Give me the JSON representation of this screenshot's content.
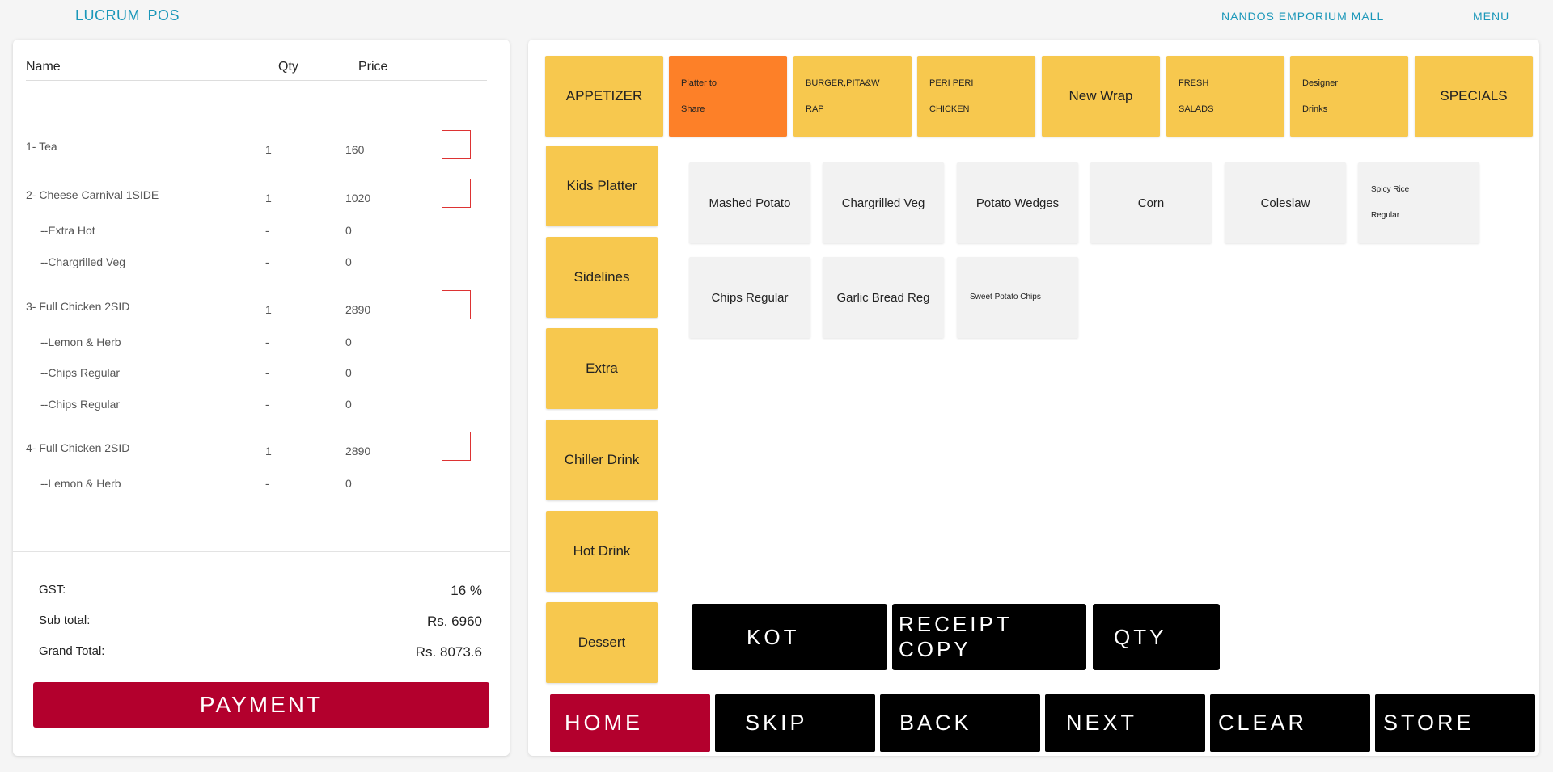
{
  "topbar": {
    "brand": "LUCRUM  POS",
    "store_name": "NANDOS EMPORIUM MALL",
    "menu_label": "MENU"
  },
  "order": {
    "headers": {
      "name": "Name",
      "qty": "Qty",
      "price": "Price"
    },
    "rows": [
      {
        "name": "1- Tea",
        "qty": "1",
        "price": "160",
        "sub": false,
        "checkbox": true
      },
      {
        "name": "2- Cheese Carnival 1SIDE",
        "qty": "1",
        "price": "1020",
        "sub": false,
        "checkbox": true
      },
      {
        "name": "--Extra Hot",
        "qty": "-",
        "price": "0",
        "sub": true,
        "checkbox": false
      },
      {
        "name": "--Chargrilled Veg",
        "qty": "-",
        "price": "0",
        "sub": true,
        "checkbox": false
      },
      {
        "name": "3- Full Chicken 2SID",
        "qty": "1",
        "price": "2890",
        "sub": false,
        "checkbox": true
      },
      {
        "name": "--Lemon & Herb",
        "qty": "-",
        "price": "0",
        "sub": true,
        "checkbox": false
      },
      {
        "name": "--Chips Regular",
        "qty": "-",
        "price": "0",
        "sub": true,
        "checkbox": false
      },
      {
        "name": "--Chips Regular",
        "qty": "-",
        "price": "0",
        "sub": true,
        "checkbox": false
      },
      {
        "name": "4- Full Chicken 2SID",
        "qty": "1",
        "price": "2890",
        "sub": false,
        "checkbox": true
      },
      {
        "name": "--Lemon & Herb",
        "qty": "-",
        "price": "0",
        "sub": true,
        "checkbox": false
      }
    ],
    "totals": {
      "gst_label": "GST:",
      "gst_value": "16 %",
      "subtotal_label": "Sub total:",
      "subtotal_value": "Rs. 6960",
      "grand_label": "Grand Total:",
      "grand_value": "Rs. 8073.6"
    },
    "payment_label": "PAYMENT"
  },
  "categories": [
    {
      "label": "APPETIZER",
      "style": "big",
      "active": false
    },
    {
      "label": "Platter to\nShare",
      "style": "small",
      "active": true
    },
    {
      "label": "BURGER,PITA&W\nRAP",
      "style": "small",
      "active": false
    },
    {
      "label": "PERI PERI\nCHICKEN",
      "style": "small",
      "active": false
    },
    {
      "label": "New Wrap",
      "style": "big",
      "active": false
    },
    {
      "label": "FRESH\nSALADS",
      "style": "small",
      "active": false
    },
    {
      "label": "Designer\nDrinks",
      "style": "small",
      "active": false
    },
    {
      "label": "SPECIALS",
      "style": "big",
      "active": false
    }
  ],
  "side_categories": [
    {
      "label": "Kids Platter"
    },
    {
      "label": "Sidelines"
    },
    {
      "label": "Extra"
    },
    {
      "label": "Chiller Drink"
    },
    {
      "label": "Hot Drink"
    },
    {
      "label": "Dessert"
    }
  ],
  "items": [
    {
      "label": "Mashed Potato",
      "style": "big"
    },
    {
      "label": "Chargrilled Veg",
      "style": "big"
    },
    {
      "label": "Potato Wedges",
      "style": "big"
    },
    {
      "label": "Corn",
      "style": "big"
    },
    {
      "label": "Coleslaw",
      "style": "big"
    },
    {
      "label": "Spicy Rice\nRegular",
      "style": "small"
    },
    {
      "label": "Chips Regular",
      "style": "big"
    },
    {
      "label": "Garlic Bread Reg",
      "style": "big"
    },
    {
      "label": "Sweet Potato Chips",
      "style": "small"
    }
  ],
  "actions": {
    "kot": "KOT",
    "receipt_copy": "RECEIPT COPY",
    "qty": "QTY"
  },
  "nav": {
    "home": "HOME",
    "skip": "SKIP",
    "back": "BACK",
    "next": "NEXT",
    "clear": "CLEAR",
    "store": "STORE"
  },
  "colors": {
    "accent_blue": "#1a97b9",
    "category_yellow": "#f7c84e",
    "category_active_orange": "#fd8028",
    "payment_red": "#b3002d",
    "item_grey": "#f2f2f2"
  }
}
